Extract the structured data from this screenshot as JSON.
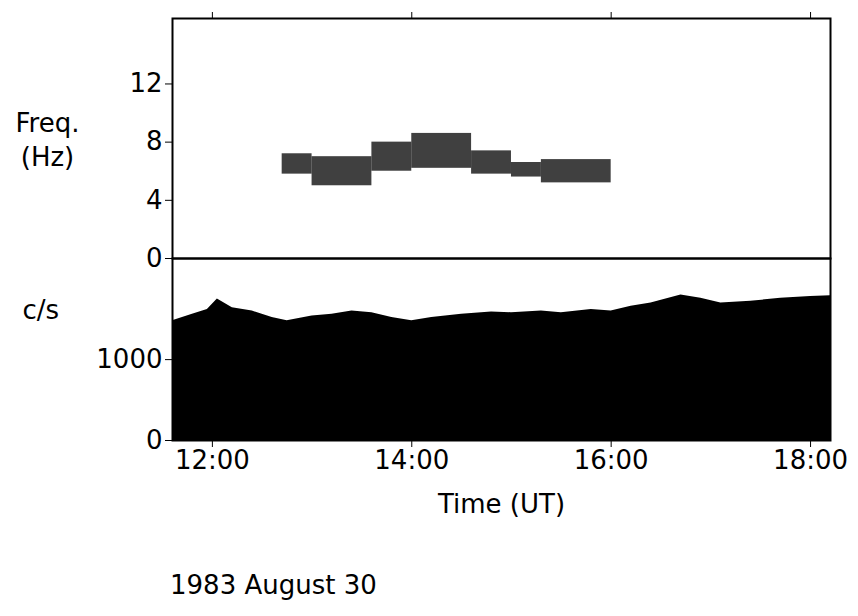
{
  "chart_data": [
    {
      "type": "heatmap",
      "ylabel": "Freq. (Hz)",
      "xlim": [
        11.6,
        18.2
      ],
      "xticks": [
        12,
        14,
        16,
        18
      ],
      "ylim": [
        0,
        16.5
      ],
      "yticks": [
        0,
        4,
        8,
        12
      ],
      "tick_labels": "y",
      "color": "#000000",
      "cells": [
        {
          "x0": 12.7,
          "x1": 13.0,
          "y0": 5.8,
          "y1": 7.2
        },
        {
          "x0": 13.0,
          "x1": 13.6,
          "y0": 5.0,
          "y1": 7.0
        },
        {
          "x0": 13.6,
          "x1": 14.0,
          "y0": 6.0,
          "y1": 8.0
        },
        {
          "x0": 14.0,
          "x1": 14.6,
          "y0": 6.2,
          "y1": 8.6
        },
        {
          "x0": 14.6,
          "x1": 15.0,
          "y0": 5.8,
          "y1": 7.4
        },
        {
          "x0": 15.0,
          "x1": 15.3,
          "y0": 5.6,
          "y1": 6.6
        },
        {
          "x0": 15.3,
          "x1": 16.0,
          "y0": 5.2,
          "y1": 6.8
        }
      ]
    },
    {
      "type": "area",
      "xlabel": "Time (UT)",
      "ylabel": "c/s",
      "caption": "1983 August 30",
      "xlim": [
        11.6,
        18.2
      ],
      "xticks": [
        {
          "value": 12,
          "label": "12:00"
        },
        {
          "value": 14,
          "label": "14:00"
        },
        {
          "value": 16,
          "label": "16:00"
        },
        {
          "value": 18,
          "label": "18:00"
        }
      ],
      "ylim": [
        0,
        2250
      ],
      "yticks": [
        0,
        1000
      ],
      "color": "#000000",
      "x": [
        11.6,
        11.8,
        11.95,
        12.05,
        12.2,
        12.4,
        12.6,
        12.75,
        13.0,
        13.2,
        13.4,
        13.6,
        13.8,
        14.0,
        14.2,
        14.5,
        14.8,
        15.0,
        15.3,
        15.5,
        15.8,
        16.0,
        16.2,
        16.4,
        16.7,
        16.9,
        17.1,
        17.4,
        17.7,
        18.0,
        18.2
      ],
      "values": [
        1480,
        1560,
        1620,
        1750,
        1640,
        1600,
        1520,
        1480,
        1540,
        1560,
        1600,
        1580,
        1520,
        1480,
        1520,
        1560,
        1590,
        1580,
        1600,
        1580,
        1620,
        1600,
        1660,
        1700,
        1800,
        1760,
        1700,
        1720,
        1760,
        1780,
        1790
      ]
    }
  ]
}
